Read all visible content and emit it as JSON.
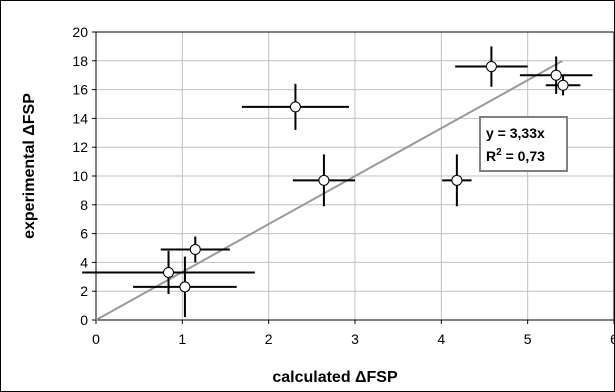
{
  "chart_data": {
    "type": "scatter",
    "title": "",
    "xlabel": "calculated ΔFSP",
    "ylabel": "experimental ΔFSP",
    "xlim": [
      0,
      6
    ],
    "ylim": [
      0,
      20
    ],
    "x_ticks": [
      "0",
      "1",
      "2",
      "3",
      "4",
      "5",
      "6"
    ],
    "y_ticks": [
      "0",
      "2",
      "4",
      "6",
      "8",
      "10",
      "12",
      "14",
      "16",
      "18",
      "20"
    ],
    "grid": true,
    "legend": "none",
    "points": [
      {
        "x": 0.84,
        "y": 3.3,
        "xerr": 1.0,
        "yerr": 1.5
      },
      {
        "x": 1.03,
        "y": 2.3,
        "xerr": 0.6,
        "yerr": 2.1
      },
      {
        "x": 1.15,
        "y": 4.9,
        "xerr": 0.4,
        "yerr": 0.9
      },
      {
        "x": 2.31,
        "y": 14.8,
        "xerr": 0.62,
        "yerr": 1.6
      },
      {
        "x": 2.64,
        "y": 9.7,
        "xerr": 0.36,
        "yerr": 1.8
      },
      {
        "x": 4.18,
        "y": 9.7,
        "xerr": 0.17,
        "yerr": 1.8
      },
      {
        "x": 4.58,
        "y": 17.6,
        "xerr": 0.42,
        "yerr": 1.4
      },
      {
        "x": 5.33,
        "y": 17.0,
        "xerr": 0.42,
        "yerr": 1.3
      },
      {
        "x": 5.41,
        "y": 16.3,
        "xerr": 0.2,
        "yerr": 0.7
      }
    ],
    "trendline": {
      "slope": 3.33,
      "x_start": 0,
      "x_end": 5.4
    },
    "annotation": {
      "equation": "y = 3,33x",
      "r2_label": "R",
      "r2_sup": "2",
      "r2_value": " = 0,73"
    },
    "colors": {
      "trendline": "#999999",
      "points": "#000000",
      "marker_fill": "#ffffff",
      "grid": "#c0c0c0"
    }
  }
}
